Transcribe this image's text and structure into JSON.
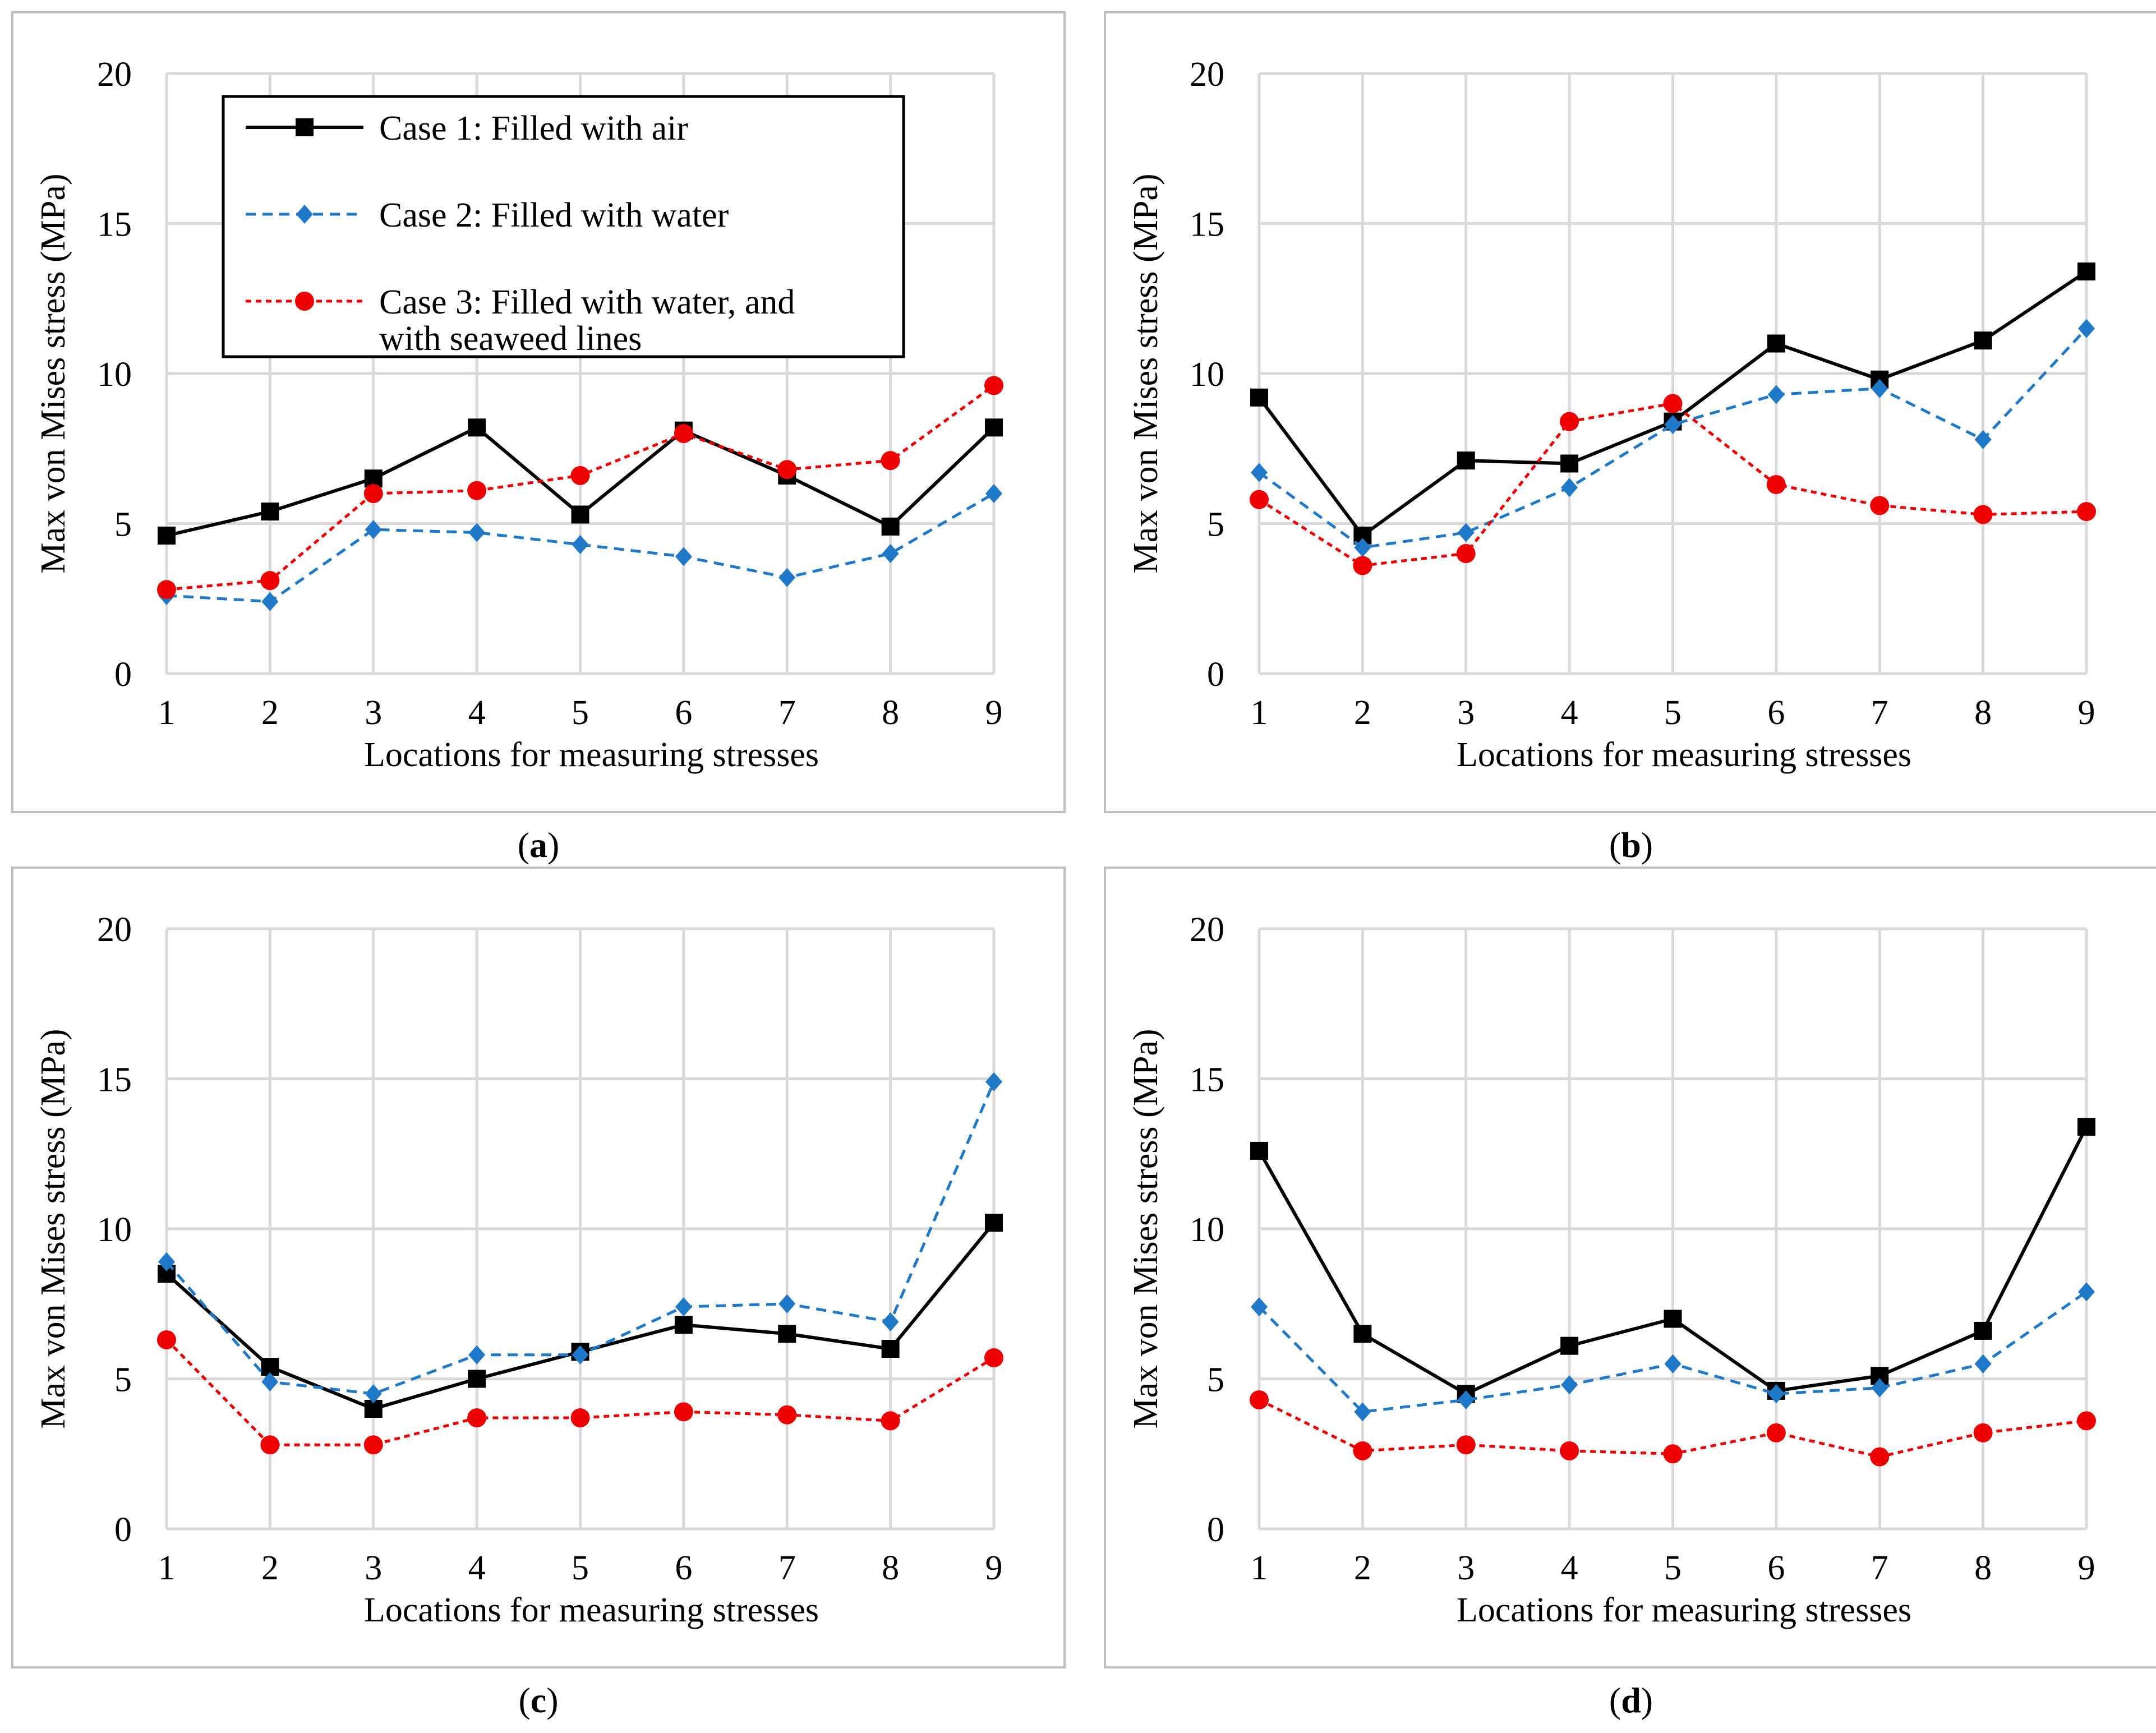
{
  "colors": {
    "case1": "#000000",
    "case2": "#1f78c8",
    "case3": "#ee0000",
    "grid": "#d9d9d9",
    "frame": "#bfbfbf"
  },
  "legend": {
    "case1": "Case 1: Filled with air",
    "case2": "Case 2: Filled with water",
    "case3_line1": "Case 3: Filled with water, and",
    "case3_line2": "with seaweed lines"
  },
  "captions": {
    "a": "a",
    "b": "b",
    "c": "c",
    "d": "d"
  },
  "chart_data": [
    {
      "id": "a",
      "type": "line",
      "title": "",
      "xlabel": "Locations for measuring stresses",
      "ylabel": "Max von Mises stress (MPa)",
      "categories": [
        "1",
        "2",
        "3",
        "4",
        "5",
        "6",
        "7",
        "8",
        "9"
      ],
      "ylim": [
        0,
        20
      ],
      "yticks": [
        "0",
        "5",
        "10",
        "15",
        "20"
      ],
      "grid": true,
      "legend": "top-left",
      "series": [
        {
          "name": "Case 1: Filled with air",
          "marker": "square",
          "values": [
            4.6,
            5.4,
            6.5,
            8.2,
            5.3,
            8.1,
            6.6,
            4.9,
            8.2
          ]
        },
        {
          "name": "Case 2: Filled with water",
          "marker": "diamond",
          "values": [
            2.6,
            2.4,
            4.8,
            4.7,
            4.3,
            3.9,
            3.2,
            4.0,
            6.0
          ]
        },
        {
          "name": "Case 3: Filled with water, and with seaweed lines",
          "marker": "circle",
          "values": [
            2.8,
            3.1,
            6.0,
            6.1,
            6.6,
            8.0,
            6.8,
            7.1,
            9.6
          ]
        }
      ]
    },
    {
      "id": "b",
      "type": "line",
      "title": "",
      "xlabel": "Locations for measuring stresses",
      "ylabel": "Max von Mises stress (MPa)",
      "categories": [
        "1",
        "2",
        "3",
        "4",
        "5",
        "6",
        "7",
        "8",
        "9"
      ],
      "ylim": [
        0,
        20
      ],
      "yticks": [
        "0",
        "5",
        "10",
        "15",
        "20"
      ],
      "grid": true,
      "series": [
        {
          "name": "Case 1: Filled with air",
          "marker": "square",
          "values": [
            9.2,
            4.6,
            7.1,
            7.0,
            8.4,
            11.0,
            9.8,
            11.1,
            13.4
          ]
        },
        {
          "name": "Case 2: Filled with water",
          "marker": "diamond",
          "values": [
            6.7,
            4.2,
            4.7,
            6.2,
            8.3,
            9.3,
            9.5,
            7.8,
            11.5
          ]
        },
        {
          "name": "Case 3: Filled with water, and with seaweed lines",
          "marker": "circle",
          "values": [
            5.8,
            3.6,
            4.0,
            8.4,
            9.0,
            6.3,
            5.6,
            5.3,
            5.4
          ]
        }
      ]
    },
    {
      "id": "c",
      "type": "line",
      "title": "",
      "xlabel": "Locations for measuring stresses",
      "ylabel": "Max von Mises stress (MPa)",
      "categories": [
        "1",
        "2",
        "3",
        "4",
        "5",
        "6",
        "7",
        "8",
        "9"
      ],
      "ylim": [
        0,
        20
      ],
      "yticks": [
        "0",
        "5",
        "10",
        "15",
        "20"
      ],
      "grid": true,
      "series": [
        {
          "name": "Case 1: Filled with air",
          "marker": "square",
          "values": [
            8.5,
            5.4,
            4.0,
            5.0,
            5.9,
            6.8,
            6.5,
            6.0,
            10.2
          ]
        },
        {
          "name": "Case 2: Filled with water",
          "marker": "diamond",
          "values": [
            8.9,
            4.9,
            4.5,
            5.8,
            5.8,
            7.4,
            7.5,
            6.9,
            14.9
          ]
        },
        {
          "name": "Case 3: Filled with water, and with seaweed lines",
          "marker": "circle",
          "values": [
            6.3,
            2.8,
            2.8,
            3.7,
            3.7,
            3.9,
            3.8,
            3.6,
            5.7
          ]
        }
      ]
    },
    {
      "id": "d",
      "type": "line",
      "title": "",
      "xlabel": "Locations for measuring stresses",
      "ylabel": "Max von Mises stress (MPa)",
      "categories": [
        "1",
        "2",
        "3",
        "4",
        "5",
        "6",
        "7",
        "8",
        "9"
      ],
      "ylim": [
        0,
        20
      ],
      "yticks": [
        "0",
        "5",
        "10",
        "15",
        "20"
      ],
      "grid": true,
      "series": [
        {
          "name": "Case 1: Filled with air",
          "marker": "square",
          "values": [
            12.6,
            6.5,
            4.5,
            6.1,
            7.0,
            4.6,
            5.1,
            6.6,
            13.4
          ]
        },
        {
          "name": "Case 2: Filled with water",
          "marker": "diamond",
          "values": [
            7.4,
            3.9,
            4.3,
            4.8,
            5.5,
            4.5,
            4.7,
            5.5,
            7.9
          ]
        },
        {
          "name": "Case 3: Filled with water, and with seaweed lines",
          "marker": "circle",
          "values": [
            4.3,
            2.6,
            2.8,
            2.6,
            2.5,
            3.2,
            2.4,
            3.2,
            3.6
          ]
        }
      ]
    }
  ]
}
